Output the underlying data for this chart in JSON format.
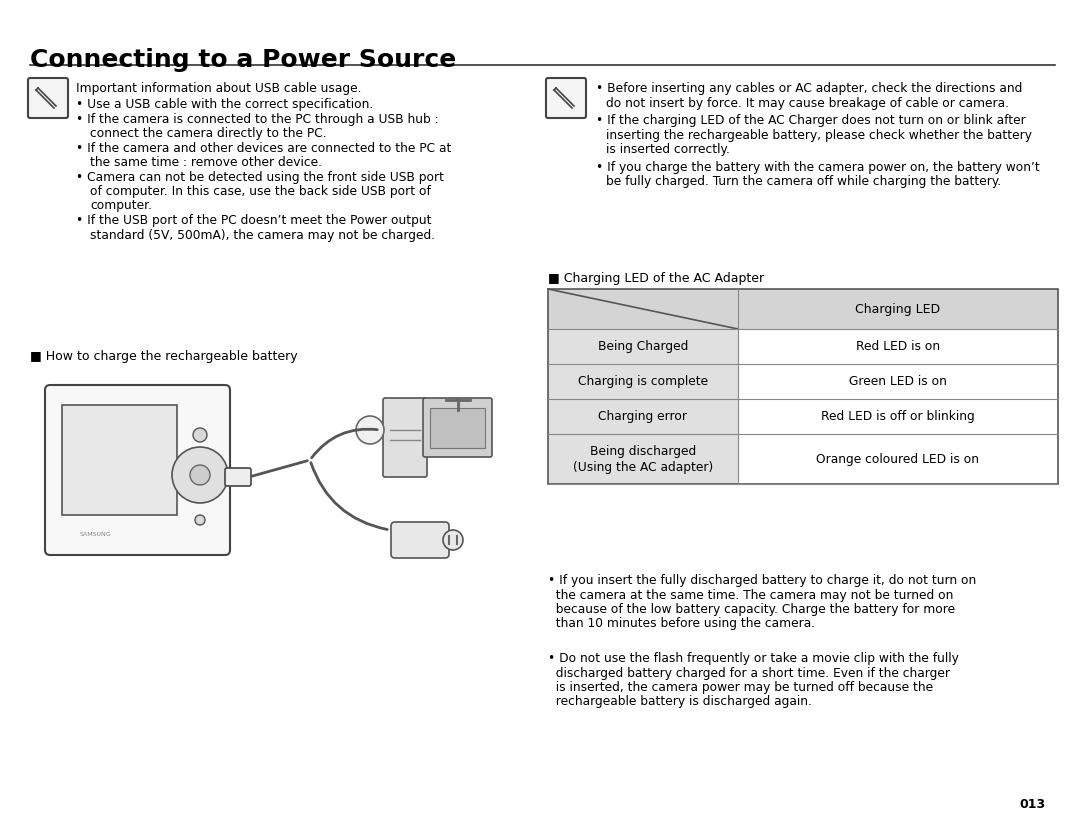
{
  "title": "Connecting to a Power Source",
  "background_color": "#ffffff",
  "text_color": "#000000",
  "page_number": "013",
  "left_note_header": "Important information about USB cable usage.",
  "left_bullets": [
    "Use a USB cable with the correct specification.",
    "If the camera is connected to the PC through a USB hub :\n   connect the camera directly to the PC.",
    "If the camera and other devices are connected to the PC at\n   the same time : remove other device.",
    "Camera can not be detected using the front side USB port\n   of computer. In this case, use the back side USB port of\n   computer.",
    "If the USB port of the PC doesn’t meet the Power output\n   standard (5V, 500mA), the camera may not be charged."
  ],
  "right_note_bullets": [
    "Before inserting any cables or AC adapter, check the directions and\n   do not insert by force. It may cause breakage of cable or camera.",
    "If the charging LED of the AC Charger does not turn on or blink after\n   inserting the rechargeable battery, please check whether the battery\n   is inserted correctly.",
    "If you charge the battery with the camera power on, the battery won’t\n   be fully charged. Turn the camera off while charging the battery."
  ],
  "how_to_charge_label": "■ How to charge the rechargeable battery",
  "table_title": "■ Charging LED of the AC Adapter",
  "table_header_right": "Charging LED",
  "table_rows": [
    [
      "Being Charged",
      "Red LED is on"
    ],
    [
      "Charging is complete",
      "Green LED is on"
    ],
    [
      "Charging error",
      "Red LED is off or blinking"
    ],
    [
      "Being discharged\n(Using the AC adapter)",
      "Orange coloured LED is on"
    ]
  ],
  "table_bg_header": "#d4d4d4",
  "table_bg_left": "#e0e0e0",
  "table_bg_right": "#ffffff",
  "table_border_color": "#888888",
  "bottom_bullet1_lines": [
    "• If you insert the fully discharged battery to charge it, do not turn on",
    "  the camera at the same time. The camera may not be turned on",
    "  because of the low battery capacity. Charge the battery for more",
    "  than 10 minutes before using the camera."
  ],
  "bottom_bullet2_lines": [
    "• Do not use the flash frequently or take a movie clip with the fully",
    "  discharged battery charged for a short time. Even if the charger",
    "  is inserted, the camera power may be turned off because the",
    "  rechargeable battery is discharged again."
  ]
}
